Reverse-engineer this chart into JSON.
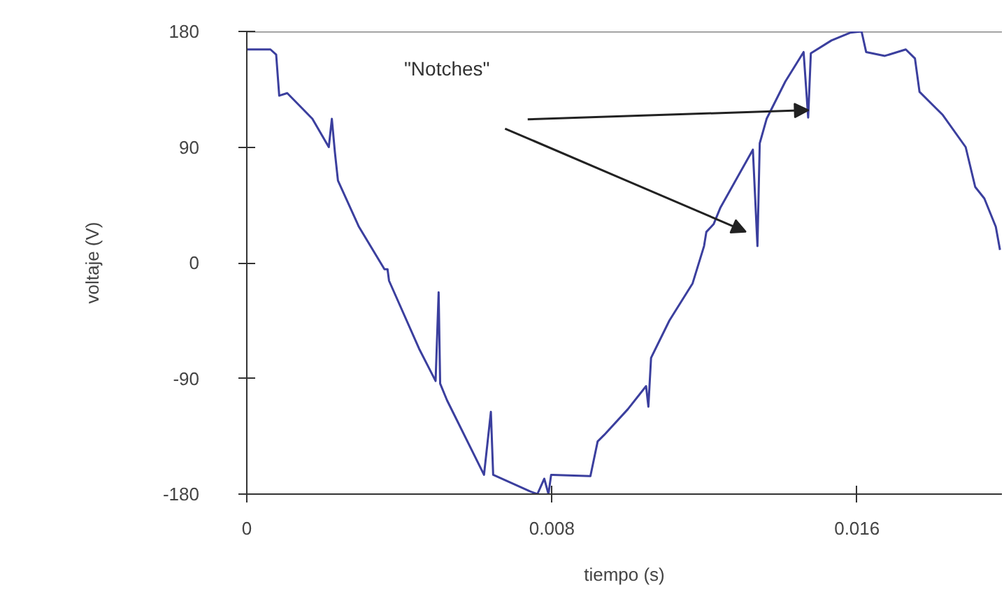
{
  "chart_data": {
    "type": "line",
    "xlabel": "tiempo (s)",
    "ylabel": "voltaje (V)",
    "xlim": [
      0,
      0.0198
    ],
    "ylim": [
      -180,
      180
    ],
    "xticks": [
      0,
      0.008,
      0.016
    ],
    "yticks": [
      -180,
      -90,
      0,
      90,
      180
    ],
    "grid": false,
    "marker": "none",
    "line_style": "solid",
    "annotations": [
      "\"Notches\""
    ],
    "series": [
      {
        "color": "#3b3f9e",
        "x": [
          0,
          0.00062,
          0.00077,
          0.00085,
          0.00106,
          0.00172,
          0.00215,
          0.00223,
          0.00231,
          0.00239,
          0.00294,
          0.00361,
          0.00369,
          0.00373,
          0.00452,
          0.00495,
          0.00503,
          0.00507,
          0.00525,
          0.00622,
          0.0064,
          0.00646,
          0.00744,
          0.00762,
          0.0078,
          0.00791,
          0.00798,
          0.00802,
          0.00901,
          0.0092,
          0.00937,
          0.00999,
          0.01047,
          0.01053,
          0.0106,
          0.01108,
          0.01169,
          0.01199,
          0.01205,
          0.01224,
          0.01242,
          0.01327,
          0.01339,
          0.01345,
          0.01363,
          0.01412,
          0.0146,
          0.01472,
          0.01479,
          0.01533,
          0.01582,
          0.01612,
          0.01624,
          0.01673,
          0.01728,
          0.01752,
          0.01764,
          0.01825,
          0.01885,
          0.0191,
          0.01934,
          0.01964,
          0.01975
        ],
        "values": [
          166,
          166,
          162,
          130,
          132,
          112,
          90,
          112,
          86,
          64,
          28,
          -5,
          -5,
          -14,
          -67,
          -92,
          -23,
          -94,
          -107,
          -165,
          -116,
          -165,
          -178,
          -180,
          -168,
          -180,
          -165,
          -165,
          -166,
          -139,
          -134,
          -114,
          -96,
          -112,
          -74,
          -45,
          -16,
          13,
          24,
          30,
          43,
          88,
          13,
          93,
          112,
          141,
          164,
          113,
          163,
          173,
          179,
          180,
          164,
          161,
          166,
          159,
          133,
          115,
          90,
          59,
          50,
          28,
          10
        ]
      }
    ]
  }
}
